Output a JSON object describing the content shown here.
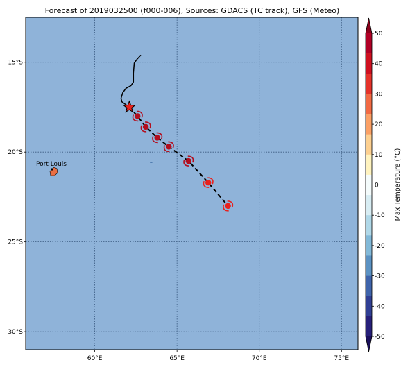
{
  "title": "Forecast of 2019032500 (f000-006), Sources: GDACS (TC track), GFS (Meteo)",
  "map": {
    "ocean_color": "#8fb3d9",
    "lon_range": [
      55.8,
      76
    ],
    "lat_range": [
      -31,
      -12.5
    ],
    "lon_ticks": [
      {
        "value": 60,
        "label": "60°E"
      },
      {
        "value": 65,
        "label": "65°E"
      },
      {
        "value": 70,
        "label": "70°E"
      },
      {
        "value": 75,
        "label": "75°E"
      }
    ],
    "lat_ticks": [
      {
        "value": -15,
        "label": "15°S"
      },
      {
        "value": -20,
        "label": "20°S"
      },
      {
        "value": -25,
        "label": "25°S"
      },
      {
        "value": -30,
        "label": "30°S"
      }
    ],
    "place_label": {
      "name": "Port Louis",
      "lon": 57.5,
      "lat": -20.2
    },
    "past_track": [
      [
        62.8,
        -14.6
      ],
      [
        62.55,
        -14.85
      ],
      [
        62.4,
        -15.05
      ],
      [
        62.35,
        -15.6
      ],
      [
        62.35,
        -16.1
      ],
      [
        62.2,
        -16.3
      ],
      [
        61.9,
        -16.45
      ],
      [
        61.7,
        -16.7
      ],
      [
        61.6,
        -17.0
      ],
      [
        61.65,
        -17.2
      ],
      [
        62.1,
        -17.5
      ]
    ],
    "current_position": {
      "lon": 62.1,
      "lat": -17.5,
      "marker": "star-icon"
    },
    "forecast_track": [
      [
        62.1,
        -17.5
      ],
      [
        62.6,
        -18.0
      ],
      [
        63.1,
        -18.6
      ],
      [
        63.8,
        -19.2
      ],
      [
        64.5,
        -19.7
      ],
      [
        65.7,
        -20.5
      ],
      [
        66.9,
        -21.7
      ],
      [
        68.1,
        -23.0
      ]
    ],
    "storm_positions": [
      {
        "lon": 62.6,
        "lat": -18.0,
        "color": "#b30e1e"
      },
      {
        "lon": 63.1,
        "lat": -18.6,
        "color": "#b30e1e"
      },
      {
        "lon": 63.8,
        "lat": -19.2,
        "color": "#b30e1e"
      },
      {
        "lon": 64.5,
        "lat": -19.7,
        "color": "#b30e1e"
      },
      {
        "lon": 65.7,
        "lat": -20.5,
        "color": "#b30e1e"
      },
      {
        "lon": 66.9,
        "lat": -21.7,
        "color": "#e8211d"
      },
      {
        "lon": 68.1,
        "lat": -23.0,
        "color": "#e8211d"
      }
    ]
  },
  "colorbar": {
    "label": "Max Temperature (°C)",
    "ticks": [
      50,
      40,
      30,
      20,
      10,
      0,
      -10,
      -20,
      -30,
      -40,
      -50
    ],
    "colors_top_to_bottom": [
      "#b10026",
      "#cf1020",
      "#e5322a",
      "#f26a44",
      "#fba065",
      "#fdd090",
      "#fff3bf",
      "#f4fbfb",
      "#d8edf3",
      "#b0d8e8",
      "#82b9d8",
      "#5b92c3",
      "#3f64ab",
      "#303f94",
      "#27207a"
    ],
    "over_color": "#8b001a",
    "under_color": "#1a0f5c"
  }
}
